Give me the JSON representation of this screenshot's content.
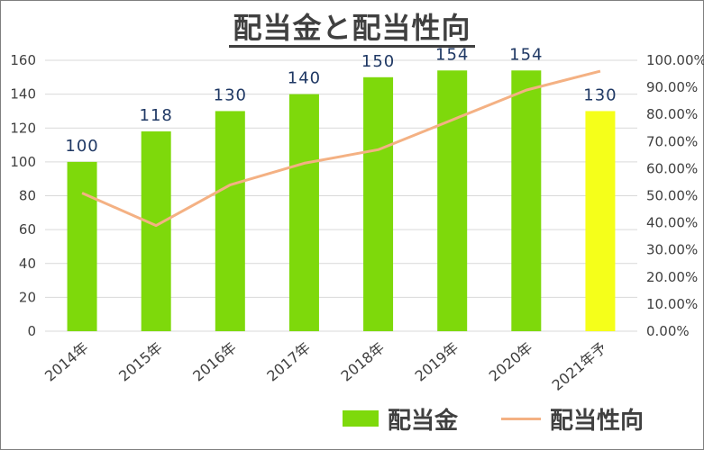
{
  "title": "配当金と配当性向",
  "legend": {
    "bar_label": "配当金",
    "line_label": "配当性向"
  },
  "colors": {
    "bar": "#7ed90b",
    "bar_forecast": "#f5ff1a",
    "line": "#f4b183",
    "grid": "#d9d9d9",
    "data_label": "#1f3864"
  },
  "chart_data": {
    "type": "bar",
    "categories": [
      "2014年",
      "2015年",
      "2016年",
      "2017年",
      "2018年",
      "2019年",
      "2020年",
      "2021年予"
    ],
    "series": [
      {
        "name": "配当金",
        "type": "bar",
        "axis": "left",
        "values": [
          100,
          118,
          130,
          140,
          150,
          154,
          154,
          130
        ]
      },
      {
        "name": "配当性向",
        "type": "line",
        "axis": "right",
        "values": [
          0.51,
          0.39,
          0.54,
          0.62,
          0.67,
          0.78,
          0.89,
          0.96
        ]
      }
    ],
    "data_labels": [
      "100",
      "118",
      "130",
      "140",
      "150",
      "154",
      "154",
      "130"
    ],
    "y_left": {
      "ylim": [
        0,
        160
      ],
      "ticks": [
        "0",
        "20",
        "40",
        "60",
        "80",
        "100",
        "120",
        "140",
        "160"
      ]
    },
    "y_right": {
      "ylim": [
        0,
        1.0
      ],
      "ticks": [
        "0.00%",
        "10.00%",
        "20.00%",
        "30.00%",
        "40.00%",
        "50.00%",
        "60.00%",
        "70.00%",
        "80.00%",
        "90.00%",
        "100.00%"
      ]
    },
    "grid": true,
    "legend_position": "bottom-right"
  }
}
